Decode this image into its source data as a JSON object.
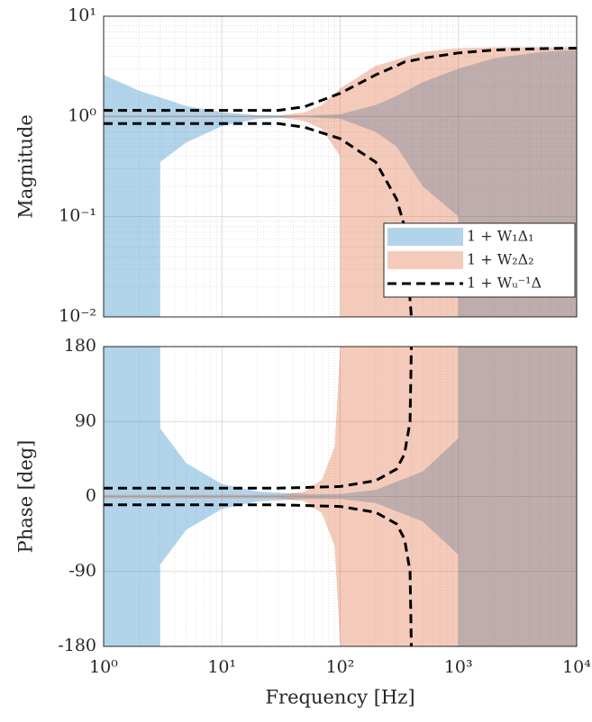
{
  "chart_data": [
    {
      "type": "band",
      "ylabel": "Magnitude",
      "xscale": "log",
      "yscale": "log",
      "xlim": [
        1,
        10000
      ],
      "xticks": [
        1,
        10,
        100,
        1000,
        10000
      ],
      "ylim": [
        0.01,
        10
      ],
      "yticks": [
        {
          "value": 0.01,
          "label": "10⁻²"
        },
        {
          "value": 0.1,
          "label": "10⁻¹"
        },
        {
          "value": 1,
          "label": "10⁰"
        },
        {
          "value": 10,
          "label": "10¹"
        }
      ],
      "grid": true,
      "minor_grid": true,
      "legend": "lower right",
      "series": [
        {
          "name": "1 + W₁Δ₁",
          "color": "#0072bd",
          "fill_opacity": 0.3,
          "style": "band",
          "x": [
            1,
            2,
            3,
            3,
            5,
            10,
            20,
            50,
            100,
            200,
            300,
            500,
            1000,
            1000,
            2000,
            5000,
            10000
          ],
          "upper": [
            2.6,
            1.8,
            1.55,
            1.55,
            1.27,
            1.1,
            1.03,
            1.02,
            1.05,
            1.3,
            1.6,
            2.2,
            3.0,
            3.0,
            3.8,
            4.4,
            4.6
          ],
          "lower": [
            0.01,
            0.01,
            0.01,
            0.35,
            0.55,
            0.8,
            0.95,
            0.98,
            0.95,
            0.7,
            0.5,
            0.2,
            0.1,
            0.01,
            0.01,
            0.01,
            0.01
          ]
        },
        {
          "name": "1 + W₂Δ₂",
          "color": "#d95319",
          "fill_opacity": 0.3,
          "style": "band",
          "x": [
            1,
            10,
            30,
            50,
            70,
            100,
            100,
            200,
            500,
            1000,
            2000,
            10000
          ],
          "upper": [
            1.02,
            1.02,
            1.02,
            1.1,
            1.3,
            1.9,
            1.9,
            3.2,
            4.4,
            4.8,
            4.9,
            4.9
          ],
          "lower": [
            0.98,
            0.98,
            0.98,
            0.9,
            0.75,
            0.4,
            0.01,
            0.01,
            0.01,
            0.01,
            0.01,
            0.01
          ]
        },
        {
          "name": "1 + Wᵤ⁻¹Δ",
          "color": "#000000",
          "style": "dashed",
          "x": [
            1,
            30,
            50,
            100,
            200,
            300,
            350,
            400,
            400,
            500,
            1000,
            2000,
            5000,
            10000
          ],
          "upper": [
            1.15,
            1.15,
            1.25,
            1.7,
            2.6,
            3.2,
            3.5,
            3.6,
            3.6,
            3.8,
            4.3,
            4.6,
            4.75,
            4.8
          ],
          "lower": [
            0.85,
            0.85,
            0.78,
            0.6,
            0.35,
            0.15,
            0.08,
            0.01,
            null,
            null,
            null,
            null,
            null,
            null
          ]
        }
      ]
    },
    {
      "type": "band",
      "xlabel": "Frequency [Hz]",
      "ylabel": "Phase [deg]",
      "xscale": "log",
      "yscale": "linear",
      "xlim": [
        1,
        10000
      ],
      "xticks": [
        {
          "value": 1,
          "label": "10⁰"
        },
        {
          "value": 10,
          "label": "10¹"
        },
        {
          "value": 100,
          "label": "10²"
        },
        {
          "value": 1000,
          "label": "10³"
        },
        {
          "value": 10000,
          "label": "10⁴"
        }
      ],
      "ylim": [
        -180,
        180
      ],
      "yticks": [
        -180,
        -90,
        0,
        90,
        180
      ],
      "grid": true,
      "minor_grid": true,
      "series": [
        {
          "color": "#0072bd",
          "fill_opacity": 0.3,
          "style": "band",
          "x": [
            1,
            3,
            3,
            5,
            10,
            20,
            50,
            100,
            200,
            500,
            1000,
            1000,
            10000
          ],
          "upper": [
            180,
            180,
            82,
            40,
            15,
            6,
            3,
            3,
            8,
            30,
            70,
            180,
            180
          ],
          "lower": [
            -180,
            -180,
            -82,
            -40,
            -15,
            -6,
            -3,
            -3,
            -8,
            -30,
            -70,
            -180,
            -180
          ]
        },
        {
          "color": "#d95319",
          "fill_opacity": 0.3,
          "style": "band",
          "x": [
            1,
            30,
            50,
            70,
            90,
            100,
            10000
          ],
          "upper": [
            2,
            2,
            6,
            20,
            60,
            180,
            180
          ],
          "lower": [
            -2,
            -2,
            -6,
            -20,
            -60,
            -180,
            -180
          ]
        },
        {
          "color": "#000000",
          "style": "dashed",
          "x": [
            1,
            30,
            100,
            200,
            300,
            350,
            390,
            400
          ],
          "upper": [
            10,
            10,
            12,
            19,
            33,
            51,
            90,
            180
          ],
          "lower": [
            -10,
            -10,
            -12,
            -19,
            -33,
            -51,
            -90,
            -180
          ]
        }
      ]
    }
  ]
}
